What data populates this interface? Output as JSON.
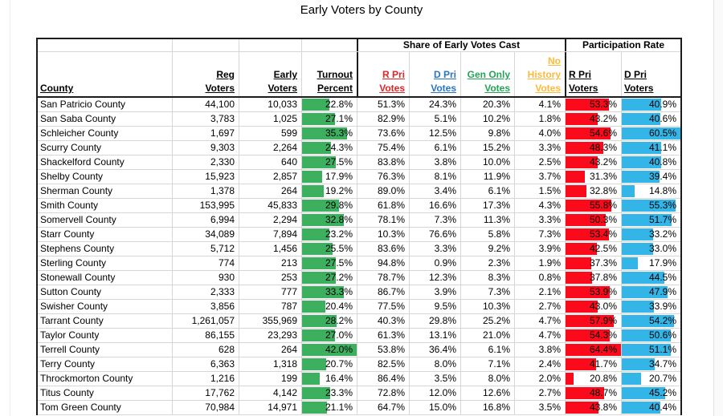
{
  "title": "Early Voters by County",
  "sections": {
    "share": "Share of Early Votes Cast",
    "participation": "Participation Rate"
  },
  "columns": [
    {
      "key": "county",
      "lines": [
        "County"
      ],
      "align": "left",
      "color": "#000000"
    },
    {
      "key": "reg",
      "lines": [
        "Reg",
        "Voters"
      ],
      "align": "right",
      "color": "#000000"
    },
    {
      "key": "early",
      "lines": [
        "Early",
        "Voters"
      ],
      "align": "right",
      "color": "#000000"
    },
    {
      "key": "turnout",
      "lines": [
        "Turnout",
        "Percent"
      ],
      "align": "right",
      "color": "#000000"
    },
    {
      "key": "r_share",
      "lines": [
        "R Pri",
        "Votes"
      ],
      "align": "right",
      "color": "#E02428"
    },
    {
      "key": "d_share",
      "lines": [
        "D Pri",
        "Votes"
      ],
      "align": "right",
      "color": "#2A74C4"
    },
    {
      "key": "gen_share",
      "lines": [
        "Gen Only",
        "Votes"
      ],
      "align": "right",
      "color": "#24A356"
    },
    {
      "key": "no_hist",
      "lines": [
        "No",
        "History",
        "Votes"
      ],
      "align": "right",
      "color": "#FFB93A"
    },
    {
      "key": "r_part",
      "lines": [
        "R Pri",
        "Voters"
      ],
      "align": "left",
      "color": "#000000"
    },
    {
      "key": "d_part",
      "lines": [
        "D Pri",
        "Voters"
      ],
      "align": "left",
      "color": "#000000"
    }
  ],
  "rows": [
    {
      "county": "San Patricio County",
      "reg": "44,100",
      "early": "10,033",
      "turnout": "22.8%",
      "r_share": "51.3%",
      "d_share": "24.3%",
      "gen_share": "20.3%",
      "no_hist": "4.1%",
      "r_part": "53.3%",
      "d_part": "40.9%"
    },
    {
      "county": "San Saba County",
      "reg": "3,783",
      "early": "1,025",
      "turnout": "27.1%",
      "r_share": "82.9%",
      "d_share": "5.1%",
      "gen_share": "10.2%",
      "no_hist": "1.8%",
      "r_part": "43.2%",
      "d_part": "40.6%"
    },
    {
      "county": "Schleicher County",
      "reg": "1,697",
      "early": "599",
      "turnout": "35.3%",
      "r_share": "73.6%",
      "d_share": "12.5%",
      "gen_share": "9.8%",
      "no_hist": "4.0%",
      "r_part": "54.6%",
      "d_part": "60.5%"
    },
    {
      "county": "Scurry County",
      "reg": "9,303",
      "early": "2,264",
      "turnout": "24.3%",
      "r_share": "75.4%",
      "d_share": "6.1%",
      "gen_share": "15.2%",
      "no_hist": "3.3%",
      "r_part": "48.3%",
      "d_part": "41.1%"
    },
    {
      "county": "Shackelford County",
      "reg": "2,330",
      "early": "640",
      "turnout": "27.5%",
      "r_share": "83.8%",
      "d_share": "3.8%",
      "gen_share": "10.0%",
      "no_hist": "2.5%",
      "r_part": "43.2%",
      "d_part": "40.8%"
    },
    {
      "county": "Shelby County",
      "reg": "15,923",
      "early": "2,857",
      "turnout": "17.9%",
      "r_share": "76.3%",
      "d_share": "8.1%",
      "gen_share": "11.9%",
      "no_hist": "3.7%",
      "r_part": "31.3%",
      "d_part": "39.4%"
    },
    {
      "county": "Sherman County",
      "reg": "1,378",
      "early": "264",
      "turnout": "19.2%",
      "r_share": "89.0%",
      "d_share": "3.4%",
      "gen_share": "6.1%",
      "no_hist": "1.5%",
      "r_part": "32.8%",
      "d_part": "14.8%"
    },
    {
      "county": "Smith County",
      "reg": "153,995",
      "early": "45,833",
      "turnout": "29.8%",
      "r_share": "61.8%",
      "d_share": "16.6%",
      "gen_share": "17.3%",
      "no_hist": "4.3%",
      "r_part": "55.8%",
      "d_part": "55.3%"
    },
    {
      "county": "Somervell County",
      "reg": "6,994",
      "early": "2,294",
      "turnout": "32.8%",
      "r_share": "78.1%",
      "d_share": "7.3%",
      "gen_share": "11.3%",
      "no_hist": "3.3%",
      "r_part": "50.3%",
      "d_part": "51.7%"
    },
    {
      "county": "Starr County",
      "reg": "34,089",
      "early": "7,894",
      "turnout": "23.2%",
      "r_share": "10.3%",
      "d_share": "76.6%",
      "gen_share": "5.8%",
      "no_hist": "7.3%",
      "r_part": "53.4%",
      "d_part": "33.2%"
    },
    {
      "county": "Stephens County",
      "reg": "5,712",
      "early": "1,456",
      "turnout": "25.5%",
      "r_share": "83.6%",
      "d_share": "3.3%",
      "gen_share": "9.2%",
      "no_hist": "3.9%",
      "r_part": "42.5%",
      "d_part": "33.0%"
    },
    {
      "county": "Sterling County",
      "reg": "774",
      "early": "213",
      "turnout": "27.5%",
      "r_share": "94.8%",
      "d_share": "0.9%",
      "gen_share": "2.3%",
      "no_hist": "1.9%",
      "r_part": "37.3%",
      "d_part": "17.9%"
    },
    {
      "county": "Stonewall County",
      "reg": "930",
      "early": "253",
      "turnout": "27.2%",
      "r_share": "78.7%",
      "d_share": "12.3%",
      "gen_share": "8.3%",
      "no_hist": "0.8%",
      "r_part": "37.8%",
      "d_part": "44.5%"
    },
    {
      "county": "Sutton County",
      "reg": "2,333",
      "early": "777",
      "turnout": "33.3%",
      "r_share": "86.7%",
      "d_share": "3.9%",
      "gen_share": "7.3%",
      "no_hist": "2.1%",
      "r_part": "53.9%",
      "d_part": "47.9%"
    },
    {
      "county": "Swisher County",
      "reg": "3,856",
      "early": "787",
      "turnout": "20.4%",
      "r_share": "77.5%",
      "d_share": "9.5%",
      "gen_share": "10.3%",
      "no_hist": "2.7%",
      "r_part": "43.0%",
      "d_part": "33.9%"
    },
    {
      "county": "Tarrant County",
      "reg": "1,261,057",
      "early": "355,969",
      "turnout": "28.2%",
      "r_share": "40.3%",
      "d_share": "29.8%",
      "gen_share": "25.2%",
      "no_hist": "4.7%",
      "r_part": "57.9%",
      "d_part": "54.2%"
    },
    {
      "county": "Taylor County",
      "reg": "86,155",
      "early": "23,293",
      "turnout": "27.0%",
      "r_share": "61.3%",
      "d_share": "13.1%",
      "gen_share": "21.0%",
      "no_hist": "4.7%",
      "r_part": "54.3%",
      "d_part": "50.6%"
    },
    {
      "county": "Terrell County",
      "reg": "628",
      "early": "264",
      "turnout": "42.0%",
      "r_share": "53.8%",
      "d_share": "36.4%",
      "gen_share": "6.1%",
      "no_hist": "3.8%",
      "r_part": "64.4%",
      "d_part": "51.1%"
    },
    {
      "county": "Terry County",
      "reg": "6,363",
      "early": "1,318",
      "turnout": "20.7%",
      "r_share": "82.5%",
      "d_share": "8.0%",
      "gen_share": "7.1%",
      "no_hist": "2.4%",
      "r_part": "41.7%",
      "d_part": "34.7%"
    },
    {
      "county": "Throckmorton County",
      "reg": "1,216",
      "early": "199",
      "turnout": "16.4%",
      "r_share": "86.4%",
      "d_share": "3.5%",
      "gen_share": "8.0%",
      "no_hist": "2.0%",
      "r_part": "20.8%",
      "d_part": "20.7%"
    },
    {
      "county": "Titus County",
      "reg": "17,762",
      "early": "4,142",
      "turnout": "23.3%",
      "r_share": "72.8%",
      "d_share": "12.0%",
      "gen_share": "12.6%",
      "no_hist": "2.7%",
      "r_part": "48.7%",
      "d_part": "45.2%"
    },
    {
      "county": "Tom Green County",
      "reg": "70,984",
      "early": "14,971",
      "turnout": "21.1%",
      "r_share": "64.7%",
      "d_share": "15.0%",
      "gen_share": "16.8%",
      "no_hist": "3.5%",
      "r_part": "43.8%",
      "d_part": "40.4%"
    }
  ],
  "bars": {
    "turnout": {
      "color": "#3CB05F",
      "scale_min": 4.0,
      "scale_max": 42.0
    },
    "r_part": {
      "color": "#FB0A1C",
      "scale_min": 13.5,
      "scale_max": 64.4
    },
    "d_part": {
      "color": "#33B5E8",
      "scale_min": 1.5,
      "scale_max": 60.5
    }
  },
  "colors": {
    "grid": "#D6D6D6",
    "table_border": "#1C1C1C",
    "header_red": "#E02428",
    "header_blue": "#2A74C4",
    "header_green": "#24A356",
    "header_gold": "#FFB93A"
  }
}
